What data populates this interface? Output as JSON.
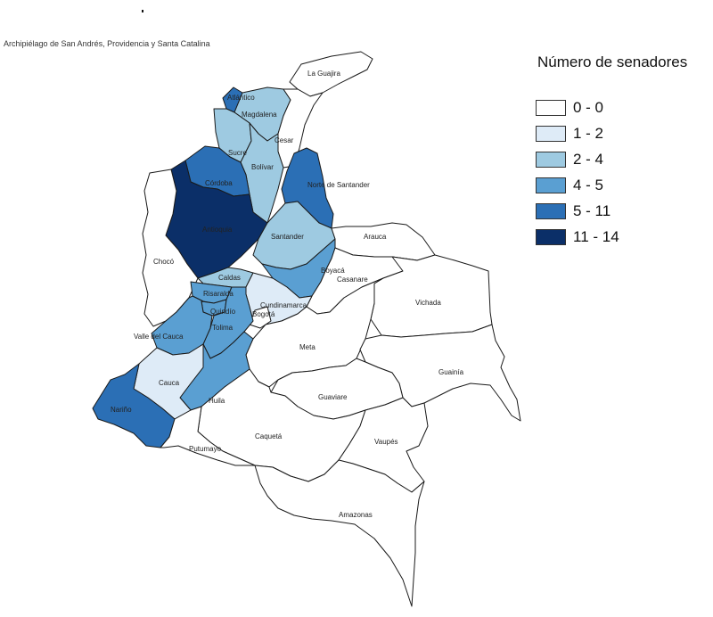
{
  "map": {
    "archipelago_label": "Archipiélago de San Andrés, Providencia y Santa Catalina",
    "legend": {
      "title": "Número de senadores",
      "items": [
        {
          "label": "0 - 0",
          "color": "#ffffff"
        },
        {
          "label": "1 - 2",
          "color": "#deebf7"
        },
        {
          "label": "2 - 4",
          "color": "#9ecae1"
        },
        {
          "label": "4 - 5",
          "color": "#5a9fd2"
        },
        {
          "label": "5 - 11",
          "color": "#2b6fb5"
        },
        {
          "label": "11 - 14",
          "color": "#0b2f68"
        }
      ]
    },
    "departments": [
      {
        "name": "La Guajira",
        "class": 0
      },
      {
        "name": "Atlántico",
        "class": 4
      },
      {
        "name": "Magdalena",
        "class": 2
      },
      {
        "name": "Cesar",
        "class": 0
      },
      {
        "name": "Sucre",
        "class": 2
      },
      {
        "name": "Bolívar",
        "class": 2
      },
      {
        "name": "Córdoba",
        "class": 4
      },
      {
        "name": "Norte de Santander",
        "class": 4
      },
      {
        "name": "Antioquia",
        "class": 5
      },
      {
        "name": "Chocó",
        "class": 0
      },
      {
        "name": "Santander",
        "class": 2
      },
      {
        "name": "Arauca",
        "class": 0
      },
      {
        "name": "Boyacá",
        "class": 3
      },
      {
        "name": "Casanare",
        "class": 0
      },
      {
        "name": "Caldas",
        "class": 2
      },
      {
        "name": "Risaralda",
        "class": 3
      },
      {
        "name": "Cundinamarca",
        "class": 1
      },
      {
        "name": "Bogotá",
        "class": 0
      },
      {
        "name": "Quindío",
        "class": 3
      },
      {
        "name": "Tolima",
        "class": 3
      },
      {
        "name": "Valle del Cauca",
        "class": 3
      },
      {
        "name": "Vichada",
        "class": 0
      },
      {
        "name": "Meta",
        "class": 0
      },
      {
        "name": "Huila",
        "class": 3
      },
      {
        "name": "Cauca",
        "class": 1
      },
      {
        "name": "Guainía",
        "class": 0
      },
      {
        "name": "Guaviare",
        "class": 0
      },
      {
        "name": "Nariño",
        "class": 4
      },
      {
        "name": "Caquetá",
        "class": 0
      },
      {
        "name": "Putumayo",
        "class": 0
      },
      {
        "name": "Vaupés",
        "class": 0
      },
      {
        "name": "Amazonas",
        "class": 0
      }
    ]
  }
}
